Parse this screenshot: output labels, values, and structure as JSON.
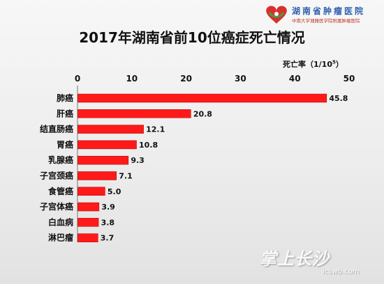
{
  "header": {
    "logo_title": "湖南省肿瘤医院",
    "logo_subtitle": "中南大学湘雅医学院附属肿瘤医院",
    "logo_colors": {
      "red": "#d9302b",
      "green": "#3aa24a",
      "blue": "#2f5fb0"
    }
  },
  "chart_data": {
    "type": "bar",
    "orientation": "horizontal",
    "title": "2017年湖南省前10位癌症死亡情况",
    "value_axis_label_prefix": "死亡率（1/10",
    "value_axis_label_exp": "5",
    "value_axis_label_suffix": "）",
    "xlim": [
      0,
      50
    ],
    "xticks": [
      "0",
      "10",
      "20",
      "30",
      "40",
      "50"
    ],
    "categories": [
      "肺癌",
      "肝癌",
      "结直肠癌",
      "胃癌",
      "乳腺癌",
      "子宫颈癌",
      "食管癌",
      "子宫体癌",
      "白血病",
      "淋巴瘤"
    ],
    "values": [
      45.8,
      20.8,
      12.1,
      10.8,
      9.3,
      7.1,
      5.0,
      3.9,
      3.8,
      3.7
    ],
    "data_labels": [
      "45.8",
      "20.8",
      "12.1",
      "10.8",
      "9.3",
      "7.1",
      "5.0",
      "3.9",
      "3.8",
      "3.7"
    ],
    "bar_color": "#ff1a1a",
    "grid": false,
    "legend": "none"
  },
  "watermark": {
    "text": "掌上长沙",
    "url": "icswb.com"
  }
}
